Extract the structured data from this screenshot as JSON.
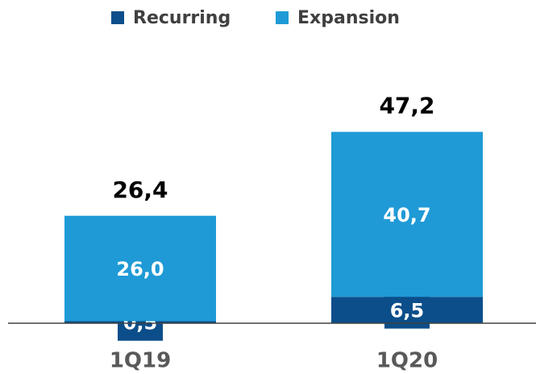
{
  "chart_data": {
    "type": "stacked_bar",
    "categories": [
      "1Q19",
      "1Q20"
    ],
    "series": [
      {
        "name": "Recurring",
        "color": "#0b4e8a",
        "values": [
          0.5,
          6.5
        ],
        "value_labels": [
          "0,5",
          "6,5"
        ]
      },
      {
        "name": "Expansion",
        "color": "#1f9ad6",
        "values": [
          26.0,
          40.7
        ],
        "value_labels": [
          "26,0",
          "40,7"
        ]
      }
    ],
    "totals": [
      26.4,
      47.2
    ],
    "total_labels": [
      "26,4",
      "47,2"
    ],
    "legend": "top"
  }
}
